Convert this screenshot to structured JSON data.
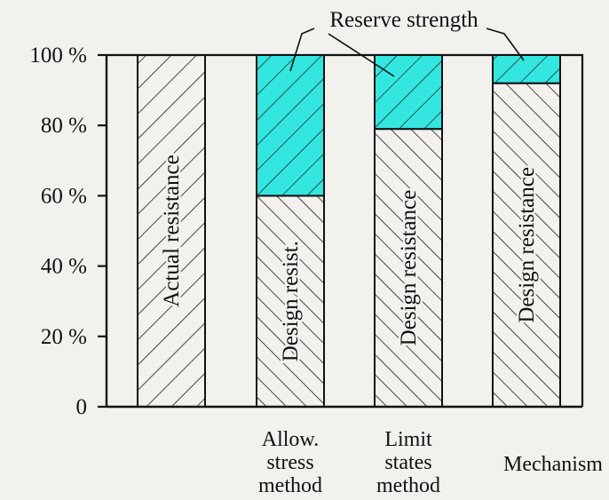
{
  "chart_data": {
    "type": "bar",
    "stacked": true,
    "y_ticks": [
      "0",
      "20 %",
      "40 %",
      "60 %",
      "80 %",
      "100 %"
    ],
    "ylim": [
      0,
      100
    ],
    "grid": false,
    "annotation": "Reserve strength",
    "colors": {
      "reserve": "#33e6e0",
      "hatch": "#1a1a1a",
      "outline": "#111111",
      "background": "#f3f1ee"
    },
    "bars": [
      {
        "category": [],
        "design": 100,
        "reserve": 0,
        "label": "Actual resistance",
        "hatch": "forward"
      },
      {
        "category": [
          "Allow.",
          "stress",
          "method"
        ],
        "design": 60,
        "reserve": 40,
        "label": "Design resist.",
        "hatch": "back"
      },
      {
        "category": [
          "Limit",
          "states",
          "method"
        ],
        "design": 79,
        "reserve": 21,
        "label": "Design resistance",
        "hatch": "back"
      },
      {
        "category": [
          "Mechanism"
        ],
        "design": 92,
        "reserve": 8,
        "label": "Design resistance",
        "hatch": "back"
      }
    ]
  }
}
